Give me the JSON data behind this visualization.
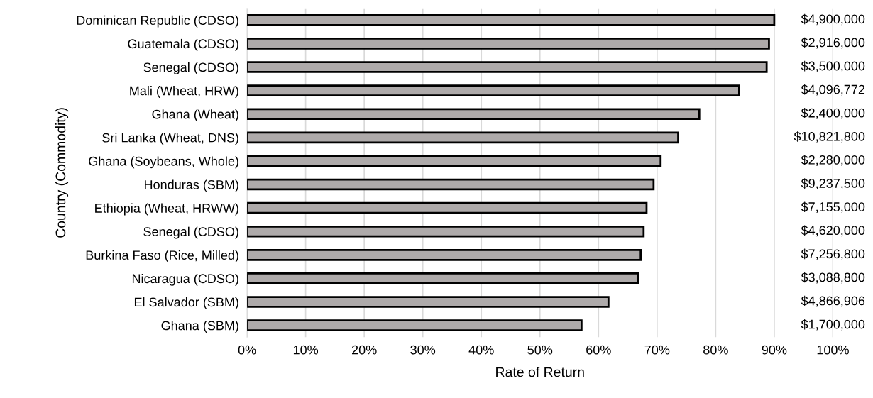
{
  "chart_data": {
    "type": "bar",
    "orientation": "horizontal",
    "xlabel": "Rate of Return",
    "ylabel": "Country (Commodity)",
    "categories": [
      "Dominican Republic (CDSO)",
      "Guatemala (CDSO)",
      "Senegal (CDSO)",
      "Mali (Wheat, HRW)",
      "Ghana (Wheat)",
      "Sri Lanka (Wheat, DNS)",
      "Ghana (Soybeans, Whole)",
      "Honduras (SBM)",
      "Ethiopia (Wheat, HRWW)",
      "Senegal (CDSO)",
      "Burkina Faso (Rice, Milled)",
      "Nicaragua (CDSO)",
      "El Salvador (SBM)",
      "Ghana (SBM)"
    ],
    "values": [
      90,
      89.1,
      88.7,
      84.0,
      77.2,
      73.6,
      70.6,
      69.4,
      68.2,
      67.7,
      67.2,
      66.8,
      61.7,
      57.1
    ],
    "annotations": [
      "$4,900,000",
      "$2,916,000",
      "$3,500,000",
      "$4,096,772",
      "$2,400,000",
      "$10,821,800",
      "$2,280,000",
      "$9,237,500",
      "$7,155,000",
      "$4,620,000",
      "$7,256,800",
      "$3,088,800",
      "$4,866,906",
      "$1,700,000"
    ],
    "color": "#aeaaaa",
    "xlim": [
      0,
      100
    ],
    "xticks": [
      {
        "value": 0,
        "label": "0%"
      },
      {
        "value": 10,
        "label": "10%"
      },
      {
        "value": 20,
        "label": "20%"
      },
      {
        "value": 30,
        "label": "30%"
      },
      {
        "value": 40,
        "label": "40%"
      },
      {
        "value": 50,
        "label": "50%"
      },
      {
        "value": 60,
        "label": "60%"
      },
      {
        "value": 70,
        "label": "70%"
      },
      {
        "value": 80,
        "label": "80%"
      },
      {
        "value": 90,
        "label": "90%"
      },
      {
        "value": 100,
        "label": "100%"
      }
    ],
    "grid": "x"
  }
}
